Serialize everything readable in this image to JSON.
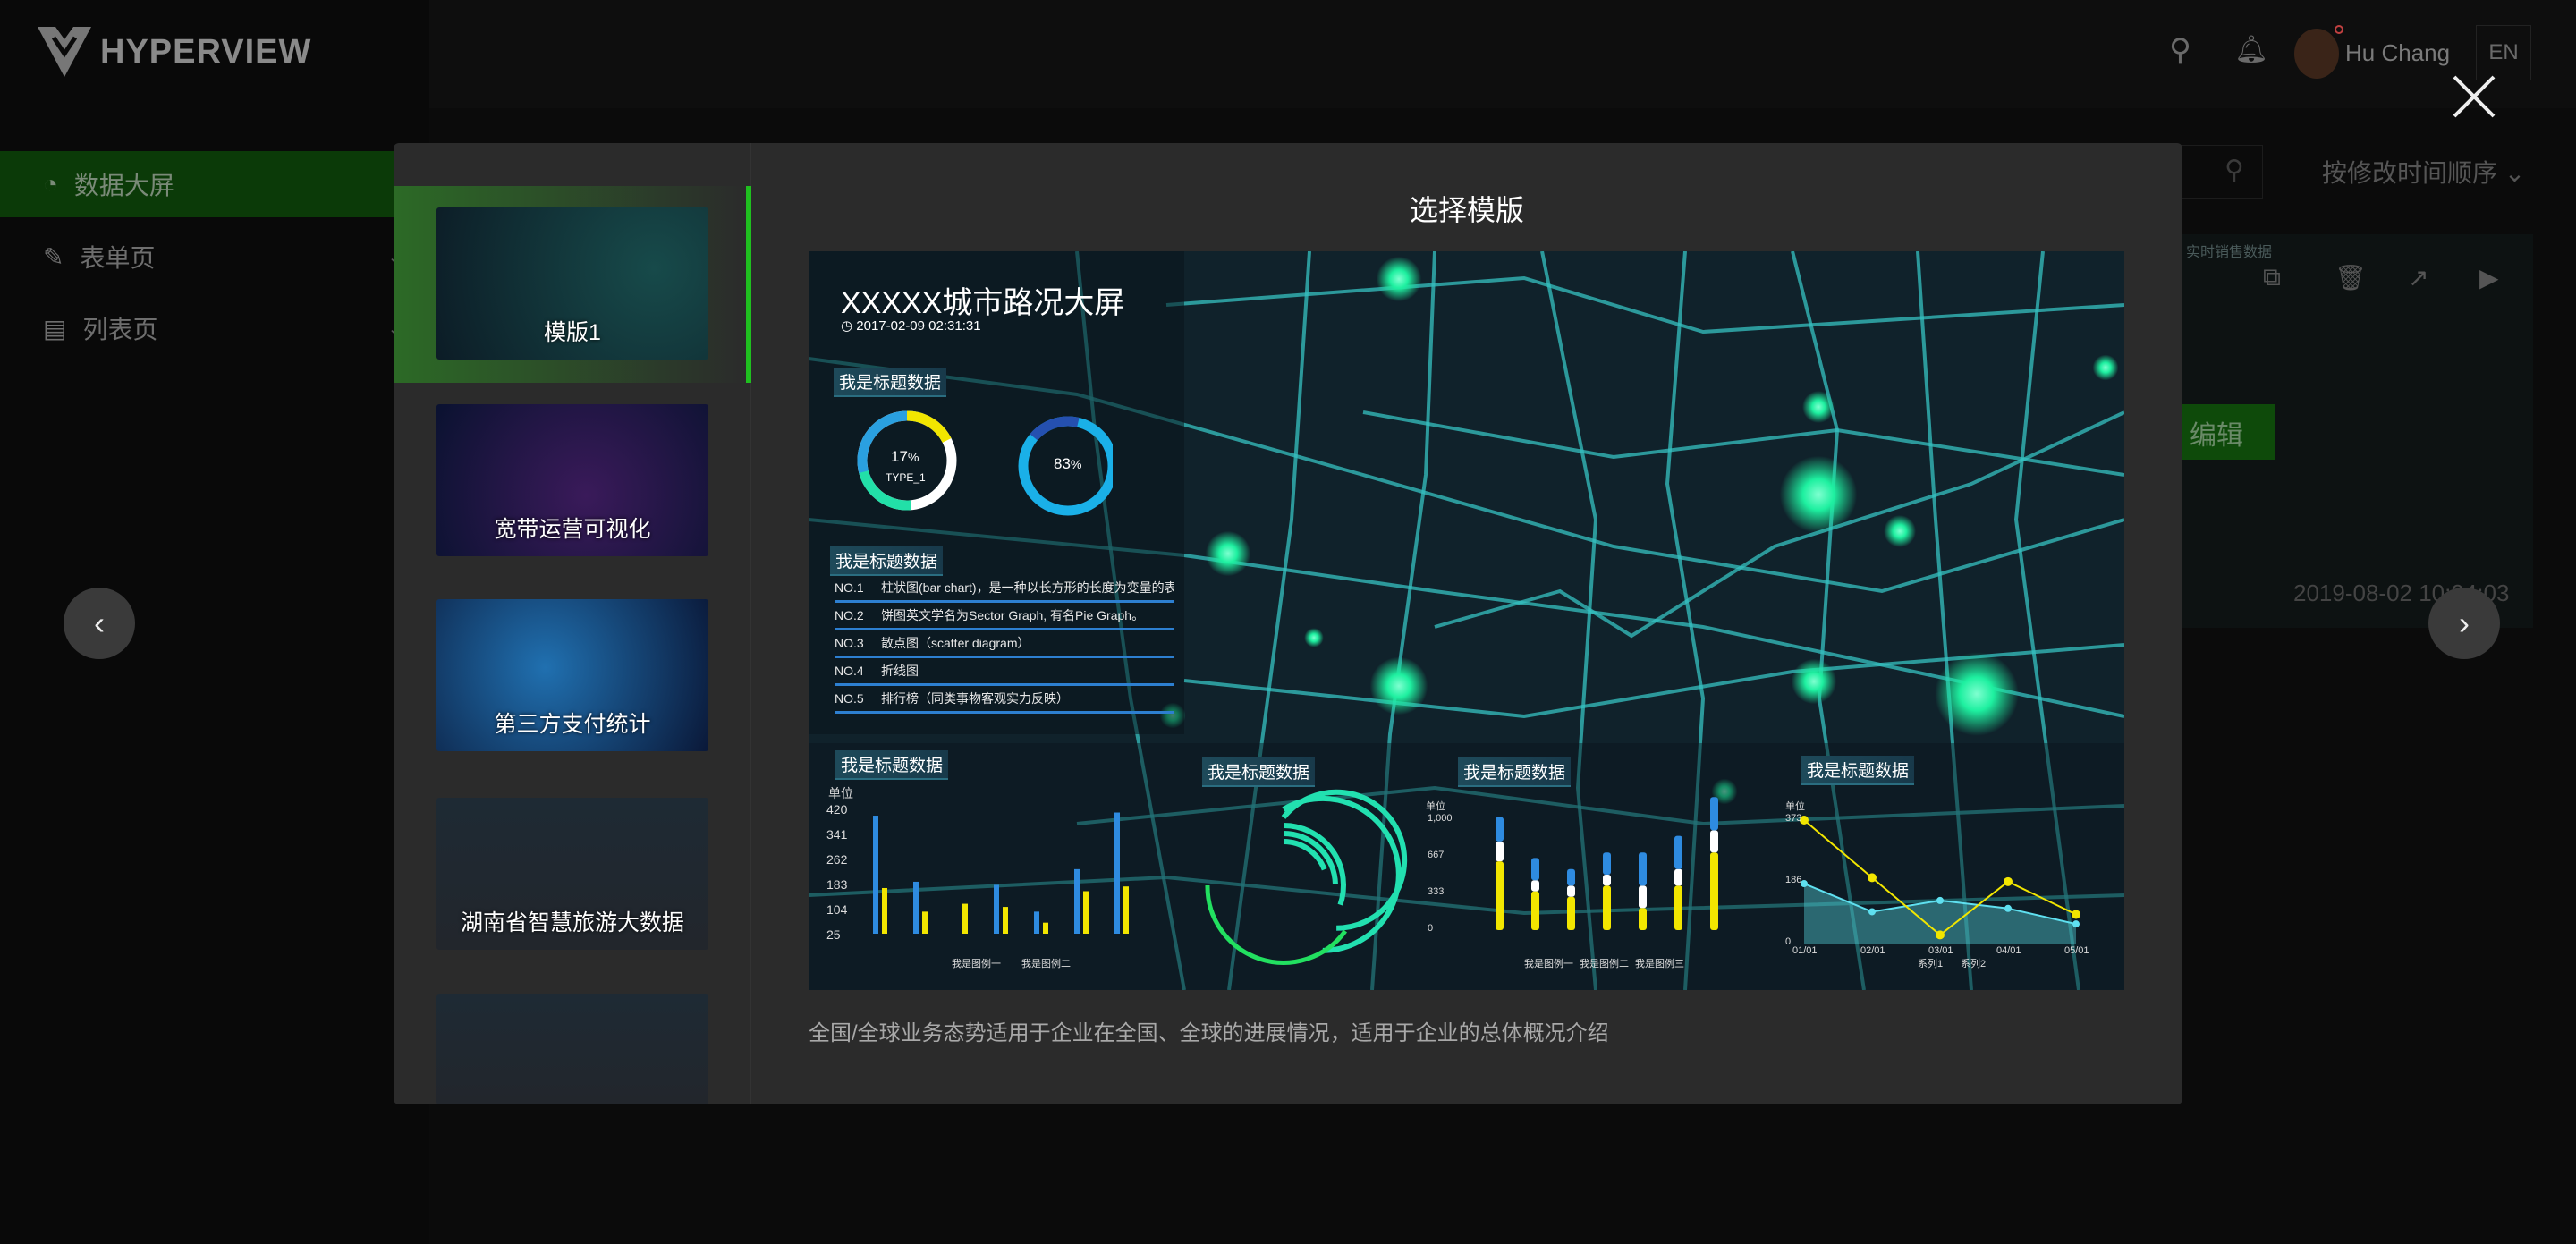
{
  "app": {
    "logo_text": "HYPERVIEW"
  },
  "sidebar": {
    "items": [
      {
        "label": "数据大屏",
        "icon": "dashboard-icon",
        "active": true
      },
      {
        "label": "表单页",
        "icon": "edit-form-icon"
      },
      {
        "label": "列表页",
        "icon": "document-icon"
      }
    ]
  },
  "header": {
    "user_name": "Hu Chang",
    "language": "EN"
  },
  "background": {
    "sort_label": "按修改时间顺序",
    "edit_label": "编辑",
    "card_date": "2019-08-02 10:04:03",
    "card_title": "实时销售数据"
  },
  "modal": {
    "title": "选择模版",
    "description": "全国/全球业务态势适用于企业在全国、全球的进展情况，适用于企业的总体概况介绍",
    "templates": [
      {
        "label": "模版1",
        "selected": true
      },
      {
        "label": "宽带运营可视化"
      },
      {
        "label": "第三方支付统计"
      },
      {
        "label": "湖南省智慧旅游大数据"
      },
      {
        "label": ""
      }
    ],
    "preview": {
      "title": "XXXXX城市路况大屏",
      "datetime": "2017-02-09 02:31:31",
      "section_title": "我是标题数据",
      "donut1": {
        "percent": "17",
        "unit": "%",
        "label": "TYPE_1"
      },
      "donut2": {
        "percent": "83",
        "unit": "%"
      },
      "list": [
        {
          "no": "NO.1",
          "text": "柱状图(bar chart)，是一种以长方形的长度为变量的表"
        },
        {
          "no": "NO.2",
          "text": "饼图英文学名为Sector Graph, 有名Pie Graph。"
        },
        {
          "no": "NO.3",
          "text": "散点图（scatter diagram）"
        },
        {
          "no": "NO.4",
          "text": "折线图"
        },
        {
          "no": "NO.5",
          "text": "排行榜（同类事物客观实力反映）"
        }
      ],
      "bar_chart": {
        "unit": "单位",
        "ticks": [
          "420",
          "341",
          "262",
          "183",
          "104",
          "25"
        ],
        "series1": [
          400,
          190,
          0,
          180,
          95,
          230,
          410
        ],
        "series2": [
          170,
          95,
          120,
          110,
          60,
          160,
          175
        ],
        "legend": [
          "我是图例一",
          "我是图例二"
        ]
      },
      "stack_chart": {
        "unit": "单位",
        "ticks": [
          "1,000",
          "667",
          "333",
          "0"
        ],
        "legend": [
          "我是图例一",
          "我是图例二",
          "我是图例三"
        ]
      },
      "line_chart": {
        "unit": "单位",
        "ticks": [
          "373",
          "186",
          "0"
        ],
        "x": [
          "01/01",
          "02/01",
          "03/01",
          "04/01",
          "05/01"
        ],
        "series1": [
          373,
          199,
          26,
          187,
          88
        ],
        "series2": [
          181,
          96,
          130,
          106,
          59
        ],
        "legend": [
          "系列1",
          "系列2"
        ]
      }
    }
  },
  "colors": {
    "accent": "#1fbf1f",
    "road": "#35c2c2",
    "glow": "#1ef0a0",
    "yellow": "#f2e600",
    "blue": "#2e8be0"
  }
}
